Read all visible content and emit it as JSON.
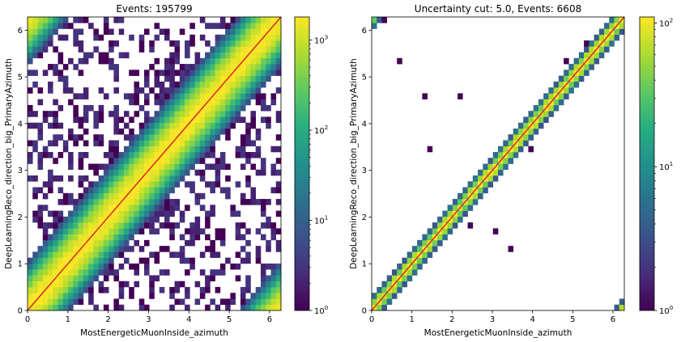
{
  "chart_data": [
    {
      "type": "heatmap",
      "title": "Events: 195799",
      "xlabel": "MostEnergeticMuonInside_azimuth",
      "ylabel": "DeepLearningReco_direction_big_PrimaryAzimuth",
      "xlim": [
        0,
        6.283
      ],
      "ylim": [
        0,
        6.283
      ],
      "x_ticks": [
        "0",
        "1",
        "2",
        "3",
        "4",
        "5",
        "6"
      ],
      "y_ticks": [
        "0",
        "1",
        "2",
        "3",
        "4",
        "5",
        "6"
      ],
      "bins": 50,
      "diagonal_line": {
        "from": [
          0,
          0
        ],
        "to": [
          6.283,
          6.283
        ],
        "color": "#d62728"
      },
      "colorbar": {
        "scale": "log",
        "range": [
          1,
          1800
        ],
        "colormap": "viridis",
        "tick_labels": [
          {
            "base": "10",
            "exp": "0",
            "value": 1
          },
          {
            "base": "10",
            "exp": "1",
            "value": 10
          },
          {
            "base": "10",
            "exp": "2",
            "value": 100
          },
          {
            "base": "10",
            "exp": "3",
            "value": 1000
          }
        ]
      },
      "distribution": {
        "peak_count": 1800,
        "diagonal_width": 0.3,
        "wraps_around": true,
        "off_diagonal_occupancy": "sparse counts of 1-3"
      }
    },
    {
      "type": "heatmap",
      "title": "Uncertainty cut: 5.0, Events: 6608",
      "xlabel": "MostEnergeticMuonInside_azimuth",
      "ylabel": "DeepLearningReco_direction_big_PrimaryAzimuth",
      "xlim": [
        0,
        6.283
      ],
      "ylim": [
        0,
        6.283
      ],
      "x_ticks": [
        "0",
        "1",
        "2",
        "3",
        "4",
        "5",
        "6"
      ],
      "y_ticks": [
        "0",
        "1",
        "2",
        "3",
        "4",
        "5",
        "6"
      ],
      "bins": 50,
      "diagonal_line": {
        "from": [
          0,
          0
        ],
        "to": [
          6.283,
          6.283
        ],
        "color": "#d62728"
      },
      "colorbar": {
        "scale": "log",
        "range": [
          1,
          110
        ],
        "colormap": "viridis",
        "tick_labels": [
          {
            "base": "10",
            "exp": "0",
            "value": 1
          },
          {
            "base": "10",
            "exp": "1",
            "value": 10
          },
          {
            "base": "10",
            "exp": "2",
            "value": 100
          }
        ]
      },
      "distribution": {
        "peak_count": 110,
        "diagonal_width": 0.1,
        "wraps_around": true,
        "off_diagonal_occupancy": "few isolated counts of 1"
      }
    }
  ]
}
